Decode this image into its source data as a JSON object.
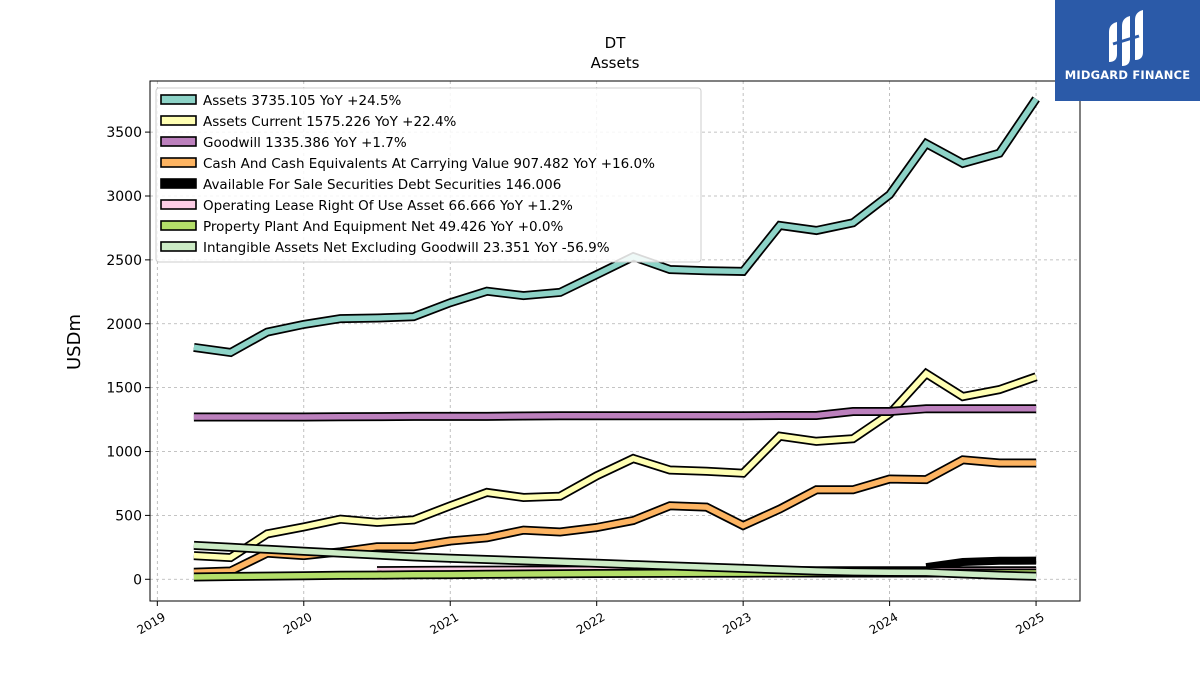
{
  "brand": {
    "name": "MIDGARD FINANCE",
    "bg_color": "#2b5aa8"
  },
  "chart_data": {
    "type": "line",
    "title": "DT",
    "subtitle": "Assets",
    "xlabel": "",
    "ylabel": "USDm",
    "xlim": [
      2018.95,
      2025.3
    ],
    "ylim": [
      -170,
      3900
    ],
    "x_ticks": [
      2019,
      2020,
      2021,
      2022,
      2023,
      2024,
      2025
    ],
    "y_ticks": [
      0,
      500,
      1000,
      1500,
      2000,
      2500,
      3000,
      3500
    ],
    "grid": true,
    "legend_position": "top-left",
    "series": [
      {
        "name": "Assets",
        "legend": "Assets  3735.105 YoY +24.5%",
        "color": "#8dd3c7",
        "x": [
          2019.25,
          2019.5,
          2019.75,
          2020.0,
          2020.25,
          2020.5,
          2020.75,
          2021.0,
          2021.25,
          2021.5,
          2021.75,
          2022.0,
          2022.25,
          2022.5,
          2022.75,
          2023.0,
          2023.25,
          2023.5,
          2023.75,
          2024.0,
          2024.25,
          2024.5,
          2024.75,
          2025.0
        ],
        "values": [
          1815,
          1775,
          1935,
          1995,
          2040,
          2045,
          2055,
          2165,
          2255,
          2220,
          2245,
          2385,
          2525,
          2425,
          2415,
          2410,
          2770,
          2730,
          2790,
          3010,
          3410,
          3255,
          3335,
          3760
        ]
      },
      {
        "name": "Assets Current",
        "legend": "Assets Current  1575.226 YoY +22.4%",
        "color": "#ffffb3",
        "x": [
          2019.25,
          2019.5,
          2019.75,
          2020.0,
          2020.25,
          2020.5,
          2020.75,
          2021.0,
          2021.25,
          2021.5,
          2021.75,
          2022.0,
          2022.25,
          2022.5,
          2022.75,
          2023.0,
          2023.25,
          2023.5,
          2023.75,
          2024.0,
          2024.25,
          2024.5,
          2024.75,
          2025.0
        ],
        "values": [
          185,
          170,
          355,
          410,
          470,
          445,
          465,
          575,
          680,
          640,
          650,
          810,
          945,
          855,
          845,
          830,
          1120,
          1080,
          1100,
          1295,
          1610,
          1430,
          1485,
          1585
        ]
      },
      {
        "name": "Goodwill",
        "legend": "Goodwill  1335.386 YoY +1.7%",
        "color": "#bc80bd",
        "x": [
          2019.25,
          2019.5,
          2019.75,
          2020.0,
          2020.25,
          2020.5,
          2020.75,
          2021.0,
          2021.25,
          2021.5,
          2021.75,
          2022.0,
          2022.25,
          2022.5,
          2022.75,
          2023.0,
          2023.25,
          2023.5,
          2023.75,
          2024.0,
          2024.25,
          2024.5,
          2024.75,
          2025.0
        ],
        "values": [
          1270,
          1270,
          1270,
          1270,
          1272,
          1273,
          1275,
          1275,
          1275,
          1278,
          1280,
          1280,
          1280,
          1280,
          1280,
          1280,
          1282,
          1282,
          1313,
          1313,
          1335,
          1335,
          1335,
          1335
        ]
      },
      {
        "name": "Cash And Cash Equivalents At Carrying Value",
        "legend": "Cash And Cash Equivalents At Carrying Value  907.482 YoY +16.0%",
        "color": "#fdb462",
        "x": [
          2019.25,
          2019.5,
          2019.75,
          2020.0,
          2020.25,
          2020.5,
          2020.75,
          2021.0,
          2021.25,
          2021.5,
          2021.75,
          2022.0,
          2022.25,
          2022.5,
          2022.75,
          2023.0,
          2023.25,
          2023.5,
          2023.75,
          2024.0,
          2024.25,
          2024.5,
          2024.75,
          2025.0
        ],
        "values": [
          55,
          65,
          205,
          185,
          215,
          255,
          255,
          300,
          325,
          385,
          370,
          405,
          460,
          575,
          565,
          420,
          550,
          700,
          700,
          785,
          780,
          935,
          910,
          910
        ]
      },
      {
        "name": "Available For Sale Securities Debt Securities",
        "legend": "Available For Sale Securities Debt Securities  146.006",
        "color": "#000000",
        "x": [
          2024.25,
          2024.5,
          2024.75,
          2025.0
        ],
        "values": [
          95,
          135,
          145,
          146
        ]
      },
      {
        "name": "Operating Lease Right Of Use Asset",
        "legend": "Operating Lease Right Of Use Asset  66.666 YoY +1.2%",
        "color": "#fccde5",
        "x": [
          2020.5,
          2021.0,
          2021.5,
          2022.0,
          2022.5,
          2023.0,
          2023.5,
          2024.0,
          2024.5,
          2025.0
        ],
        "values": [
          68,
          70,
          72,
          72,
          70,
          68,
          66,
          66,
          66,
          67
        ]
      },
      {
        "name": "Property Plant And Equipment Net",
        "legend": "Property Plant And Equipment Net  49.426 YoY +0.0%",
        "color": "#b3de69",
        "x": [
          2019.25,
          2019.5,
          2019.75,
          2020.0,
          2020.25,
          2020.5,
          2020.75,
          2021.0,
          2021.25,
          2021.5,
          2021.75,
          2022.0,
          2022.25,
          2022.5,
          2022.75,
          2023.0,
          2023.25,
          2023.5,
          2023.75,
          2024.0,
          2024.25,
          2024.5,
          2024.75,
          2025.0
        ],
        "values": [
          18,
          22,
          25,
          28,
          31,
          33,
          35,
          37,
          39,
          41,
          43,
          45,
          46,
          47,
          48,
          48,
          49,
          49,
          49,
          49,
          49,
          49,
          49,
          49
        ]
      },
      {
        "name": "Intangible Assets Net Excluding Goodwill",
        "legend": "Intangible Assets Net Excluding Goodwill  23.351 YoY -56.9%",
        "color": "#ccebc5",
        "x": [
          2019.25,
          2019.5,
          2019.75,
          2020.0,
          2020.25,
          2020.5,
          2020.75,
          2021.0,
          2021.25,
          2021.5,
          2021.75,
          2022.0,
          2022.25,
          2022.5,
          2022.75,
          2023.0,
          2023.25,
          2023.5,
          2023.75,
          2024.0,
          2024.25,
          2024.5,
          2024.75,
          2025.0
        ],
        "values": [
          265,
          250,
          235,
          220,
          205,
          190,
          175,
          165,
          155,
          145,
          135,
          125,
          115,
          105,
          95,
          85,
          75,
          65,
          58,
          55,
          54,
          42,
          32,
          23
        ]
      }
    ]
  }
}
